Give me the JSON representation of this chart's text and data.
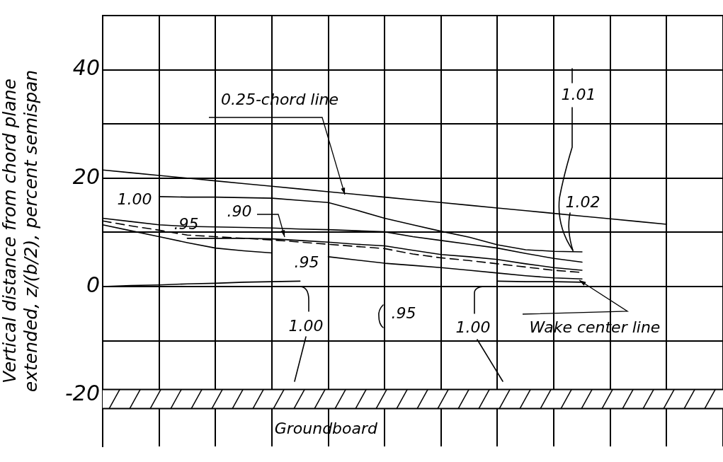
{
  "chart_data": {
    "type": "line",
    "ylabel": "Vertical distance from chord plane\nextended, z/(b/2), percent semispan",
    "categories": [
      null,
      null,
      null,
      null,
      null,
      null,
      null,
      null,
      null,
      null,
      null,
      null,
      null,
      null,
      null,
      null,
      null,
      null,
      null,
      null,
      null,
      null,
      null
    ],
    "ylim": [
      -29.5,
      50
    ],
    "yticks": [
      -20,
      {
        "value": -10,
        "label": null
      },
      0,
      {
        "value": 10,
        "label": null
      },
      20,
      {
        "value": 30,
        "label": null
      },
      40,
      {
        "value": 50,
        "label": null
      }
    ],
    "tick_labels": "y",
    "grid": true,
    "legend": false,
    "marker": "none",
    "series": [
      {
        "color": "#000000",
        "values": [
          21.5,
          21.0,
          20.5,
          20.0,
          19.5,
          19.0,
          18.5,
          18.0,
          17.5,
          17.0,
          16.5,
          16.0,
          15.5,
          15.0,
          14.5,
          14.0,
          13.5,
          13.0,
          12.5,
          12.0,
          11.5,
          null,
          null
        ]
      },
      {
        "color": "#000000",
        "values": [
          null,
          null,
          16.6,
          16.5,
          16.5,
          16.4,
          16.3,
          15.9,
          15.5,
          14.1,
          12.6,
          11.4,
          10.2,
          9.1,
          7.7,
          6.8,
          6.5,
          6.4,
          null,
          null,
          null,
          null,
          null
        ]
      },
      {
        "color": "#000000",
        "values": [
          12.6,
          12.0,
          11.4,
          11.1,
          11.0,
          10.9,
          10.8,
          10.6,
          10.5,
          10.3,
          10.1,
          9.2,
          8.5,
          7.8,
          7.1,
          6.1,
          5.2,
          4.5,
          null,
          null,
          null,
          null,
          null
        ]
      },
      {
        "color": "#000000",
        "values": [
          null,
          null,
          null,
          8.9,
          8.9,
          8.9,
          8.8,
          8.5,
          8.2,
          7.8,
          7.5,
          6.7,
          5.9,
          5.5,
          5.0,
          4.2,
          3.5,
          3.0,
          null,
          null,
          null,
          null,
          null
        ]
      },
      {
        "color": "#000000",
        "line_style": "dashed",
        "values": [
          12.1,
          11.2,
          10.4,
          9.5,
          9.2,
          8.9,
          8.6,
          8.2,
          7.8,
          7.4,
          7.0,
          6.0,
          5.3,
          4.8,
          4.2,
          3.6,
          3.0,
          2.6,
          null,
          null,
          null,
          null,
          null
        ]
      },
      {
        "color": "#000000",
        "values": [
          11.4,
          10.3,
          9.2,
          8.1,
          7.1,
          6.6,
          6.2,
          null,
          5.5,
          4.9,
          4.3,
          3.9,
          3.5,
          3.0,
          2.5,
          2.0,
          1.6,
          1.4,
          null,
          null,
          null,
          null,
          null
        ]
      },
      {
        "color": "#000000",
        "values": [
          0,
          0.2,
          0.3,
          0.5,
          0.6,
          0.8,
          0.9,
          1.0,
          null,
          null,
          null,
          null,
          null,
          null,
          null,
          null,
          null,
          null,
          null,
          null,
          null,
          null,
          null
        ]
      },
      {
        "color": "#000000",
        "values": [
          null,
          null,
          null,
          null,
          null,
          null,
          null,
          null,
          null,
          null,
          null,
          null,
          null,
          null,
          1.0,
          0.9,
          0.9,
          0.8,
          null,
          null,
          null,
          null,
          null
        ]
      }
    ],
    "bands": [
      {
        "axis": "y",
        "from": -22.5,
        "to": -19,
        "label": "Groundboard"
      }
    ],
    "annotations": [
      "0.25-chord line",
      "1.00",
      ".95",
      ".90",
      ".95",
      "1.00",
      ".95",
      "1.00",
      "1.01",
      "1.02",
      "Wake center line"
    ]
  }
}
